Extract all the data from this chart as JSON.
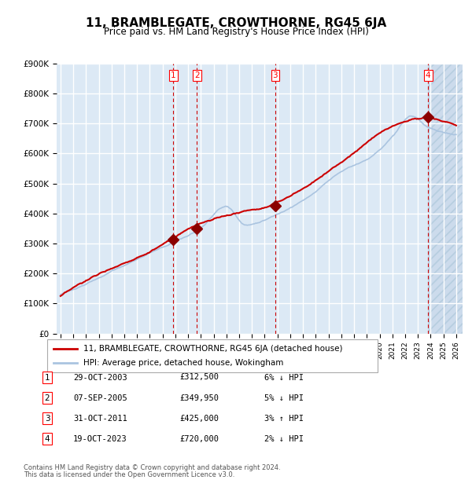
{
  "title": "11, BRAMBLEGATE, CROWTHORNE, RG45 6JA",
  "subtitle": "Price paid vs. HM Land Registry's House Price Index (HPI)",
  "legend_line1": "11, BRAMBLEGATE, CROWTHORNE, RG45 6JA (detached house)",
  "legend_line2": "HPI: Average price, detached house, Wokingham",
  "footer1": "Contains HM Land Registry data © Crown copyright and database right 2024.",
  "footer2": "This data is licensed under the Open Government Licence v3.0.",
  "hpi_color": "#aac4e0",
  "price_color": "#cc0000",
  "marker_color": "#8b0000",
  "vline_color": "#cc0000",
  "bg_plot": "#dce9f5",
  "bg_hatch": "#c8d8ea",
  "grid_color": "#ffffff",
  "ylim": [
    0,
    900000
  ],
  "yticks": [
    0,
    100000,
    200000,
    300000,
    400000,
    500000,
    600000,
    700000,
    800000,
    900000
  ],
  "ytick_labels": [
    "£0",
    "£100K",
    "£200K",
    "£300K",
    "£400K",
    "£500K",
    "£600K",
    "£700K",
    "£800K",
    "£900K"
  ],
  "purchases": [
    {
      "num": 1,
      "date": "29-OCT-2003",
      "year": 2003.83,
      "price": 312500,
      "pct": "6%",
      "dir": "↓"
    },
    {
      "num": 2,
      "date": "07-SEP-2005",
      "year": 2005.69,
      "price": 349950,
      "pct": "5%",
      "dir": "↓"
    },
    {
      "num": 3,
      "date": "31-OCT-2011",
      "year": 2011.83,
      "price": 425000,
      "pct": "3%",
      "dir": "↑"
    },
    {
      "num": 4,
      "date": "19-OCT-2023",
      "year": 2023.8,
      "price": 720000,
      "pct": "2%",
      "dir": "↓"
    }
  ],
  "table_rows": [
    {
      "num": 1,
      "date": "29-OCT-2003",
      "price": "£312,500",
      "pct": "6% ↓ HPI"
    },
    {
      "num": 2,
      "date": "07-SEP-2005",
      "price": "£349,950",
      "pct": "5% ↓ HPI"
    },
    {
      "num": 3,
      "date": "31-OCT-2011",
      "price": "£425,000",
      "pct": "3% ↑ HPI"
    },
    {
      "num": 4,
      "date": "19-OCT-2023",
      "price": "£720,000",
      "pct": "2% ↓ HPI"
    }
  ]
}
